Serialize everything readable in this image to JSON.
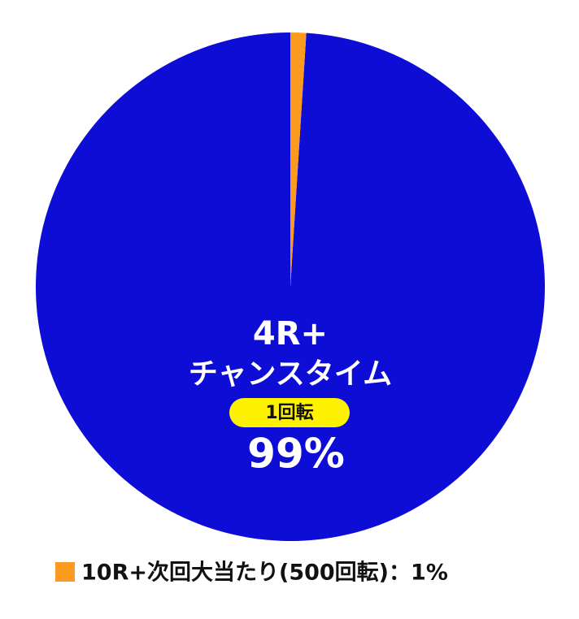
{
  "chart_data": {
    "type": "pie",
    "slices": [
      {
        "label": [
          "4R+",
          "チャンスタイム"
        ],
        "badge": "1回転",
        "value": 99,
        "value_label": "99%",
        "color": "#0d0dd6"
      },
      {
        "legend": "10R+次回大当たり(500回転)：1%",
        "value": 1,
        "color": "#fa9a1e"
      }
    ]
  }
}
